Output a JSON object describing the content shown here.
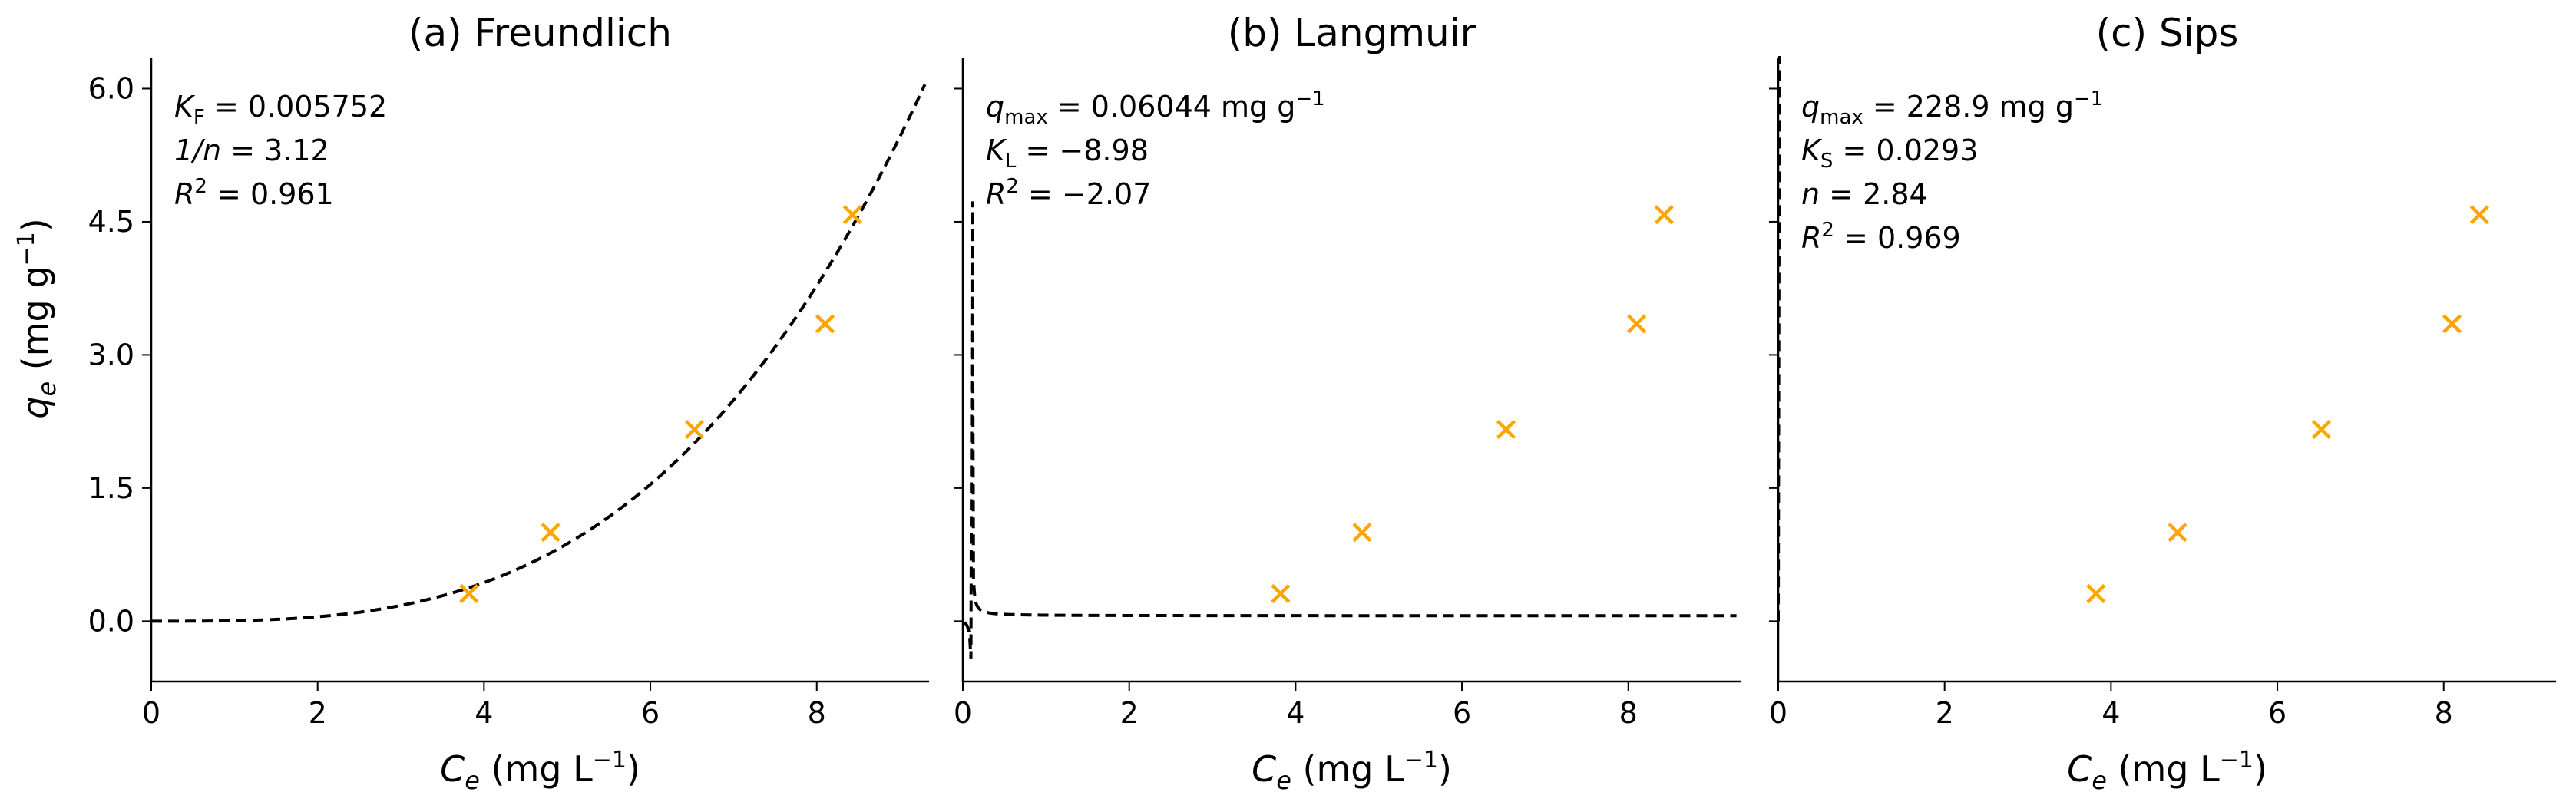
{
  "figure": {
    "ylabel_prefix": "q",
    "ylabel_sub": "e",
    "ylabel_rest": " (mg g",
    "ylabel_sup": "−1",
    "ylabel_close": ")"
  },
  "chart_data": [
    {
      "type": "scatter",
      "title": "(a) Freundlich",
      "xlabel_var": "C",
      "xlabel_sub": "e",
      "xlabel_unit": " (mg L",
      "xlabel_sup": "−1",
      "xlabel_close": ")",
      "xlim": [
        0,
        9.35
      ],
      "ylim": [
        -0.68,
        6.35
      ],
      "xticks": [
        0,
        2,
        4,
        6,
        8
      ],
      "xtick_labels": [
        "0",
        "2",
        "4",
        "6",
        "8"
      ],
      "yticks": [
        0.0,
        1.5,
        3.0,
        4.5,
        6.0
      ],
      "ytick_labels": [
        "0.0",
        "1.5",
        "3.0",
        "4.5",
        "6.0"
      ],
      "show_y_ticklabels": true,
      "points": {
        "x": [
          3.82,
          4.8,
          6.53,
          8.1,
          8.43
        ],
        "y": [
          0.31,
          1.0,
          2.16,
          3.35,
          4.58
        ],
        "marker": "x",
        "color": "#FFA500"
      },
      "fit": {
        "model": "freundlich",
        "params": {
          "KF": 0.005752,
          "inv_n": 3.12
        },
        "x_range": [
          0,
          9.3
        ],
        "style": "dashed",
        "color": "#000000"
      },
      "annotations": [
        {
          "var": "K",
          "sub": "F",
          "rest": " = 0.005752"
        },
        {
          "var": "1/n",
          "sub": "",
          "rest": " = 3.12"
        },
        {
          "var": "R",
          "sup": "2",
          "rest": " = 0.961"
        }
      ]
    },
    {
      "type": "scatter",
      "title": "(b) Langmuir",
      "xlabel_var": "C",
      "xlabel_sub": "e",
      "xlabel_unit": " (mg L",
      "xlabel_sup": "−1",
      "xlabel_close": ")",
      "xlim": [
        0,
        9.35
      ],
      "ylim": [
        -0.68,
        6.35
      ],
      "xticks": [
        0,
        2,
        4,
        6,
        8
      ],
      "xtick_labels": [
        "0",
        "2",
        "4",
        "6",
        "8"
      ],
      "yticks": [
        0.0,
        1.5,
        3.0,
        4.5,
        6.0
      ],
      "ytick_labels": [
        "0.0",
        "1.5",
        "3.0",
        "4.5",
        "6.0"
      ],
      "show_y_ticklabels": false,
      "points": {
        "x": [
          3.82,
          4.8,
          6.53,
          8.1,
          8.43
        ],
        "y": [
          0.31,
          1.0,
          2.16,
          3.35,
          4.58
        ],
        "marker": "x",
        "color": "#FFA500"
      },
      "fit": {
        "model": "langmuir",
        "params": {
          "qmax": 0.06044,
          "KL": -8.98
        },
        "x_range": [
          0.02,
          9.3
        ],
        "style": "dashed",
        "color": "#000000"
      },
      "annotations": [
        {
          "var": "q",
          "sub": "max",
          "rest": " = 0.06044 mg g",
          "sup_end": "−1"
        },
        {
          "var": "K",
          "sub": "L",
          "rest": " = −8.98"
        },
        {
          "var": "R",
          "sup": "2",
          "rest": " = −2.07"
        }
      ]
    },
    {
      "type": "scatter",
      "title": "(c) Sips",
      "xlabel_var": "C",
      "xlabel_sub": "e",
      "xlabel_unit": " (mg L",
      "xlabel_sup": "−1",
      "xlabel_close": ")",
      "xlim": [
        0,
        9.35
      ],
      "ylim": [
        -0.68,
        6.35
      ],
      "xticks": [
        0,
        2,
        4,
        6,
        8
      ],
      "xtick_labels": [
        "0",
        "2",
        "4",
        "6",
        "8"
      ],
      "yticks": [
        0.0,
        1.5,
        3.0,
        4.5,
        6.0
      ],
      "ytick_labels": [
        "0.0",
        "1.5",
        "3.0",
        "4.5",
        "6.0"
      ],
      "show_y_ticklabels": false,
      "points": {
        "x": [
          3.82,
          4.8,
          6.53,
          8.1,
          8.43
        ],
        "y": [
          0.31,
          1.0,
          2.16,
          3.35,
          4.58
        ],
        "marker": "x",
        "color": "#FFA500"
      },
      "fit": {
        "model": "sips",
        "params": {
          "qmax": 228.9,
          "KS": 0.0293,
          "n": 2.84
        },
        "x_range": [
          0,
          9.3
        ],
        "style": "dashed",
        "color": "#000000"
      },
      "annotations": [
        {
          "var": "q",
          "sub": "max",
          "rest": " = 228.9 mg g",
          "sup_end": "−1"
        },
        {
          "var": "K",
          "sub": "S",
          "rest": " = 0.0293"
        },
        {
          "var": "n",
          "sub": "",
          "rest": " = 2.84"
        },
        {
          "var": "R",
          "sup": "2",
          "rest": " = 0.969"
        }
      ]
    }
  ]
}
